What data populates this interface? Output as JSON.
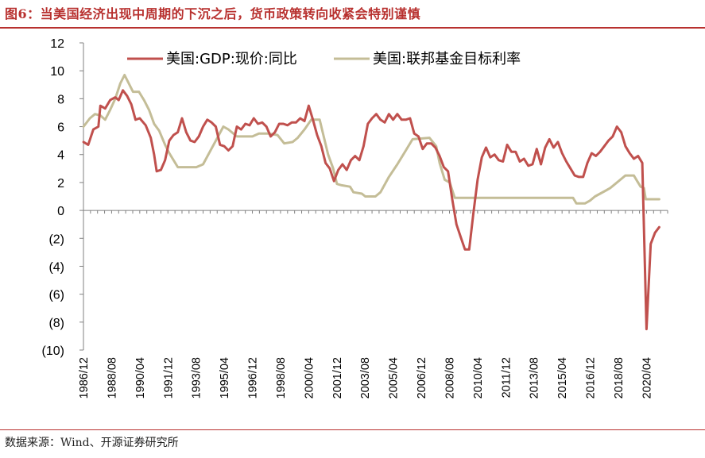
{
  "title": "图6：当美国经济出现中周期的下沉之后，货币政策转向收紧会特别谨慎",
  "source": "数据来源：Wind、开源证券研究所",
  "colors": {
    "gdp": "#c0504d",
    "fed": "#c4bd97",
    "axis": "#808080",
    "title": "#b8312f"
  },
  "chart_data": {
    "type": "line",
    "title": "图6：当美国经济出现中周期的下沉之后，货币政策转向收紧会特别谨慎",
    "xlabel": "",
    "ylabel": "",
    "ylim": [
      -10,
      12
    ],
    "yticks": [
      12,
      10,
      8,
      6,
      4,
      2,
      0,
      -2,
      -4,
      -6,
      -8,
      -10
    ],
    "ytick_labels": [
      "12",
      "10",
      "8",
      "6",
      "4",
      "2",
      "0",
      "(2)",
      "(4)",
      "(6)",
      "(8)",
      "(10)"
    ],
    "xlim": [
      1986.917,
      2021.5
    ],
    "xticks": [
      1986.917,
      1988.583,
      1990.25,
      1991.917,
      1993.583,
      1995.25,
      1996.917,
      1998.583,
      2000.25,
      2001.917,
      2003.583,
      2005.25,
      2006.917,
      2008.583,
      2010.25,
      2011.917,
      2013.583,
      2015.25,
      2016.917,
      2018.583,
      2020.25
    ],
    "xtick_labels": [
      "1986/12",
      "1988/08",
      "1990/04",
      "1991/12",
      "1993/08",
      "1995/04",
      "1996/12",
      "1998/08",
      "2000/04",
      "2001/12",
      "2003/08",
      "2005/04",
      "2006/12",
      "2008/08",
      "2010/04",
      "2011/12",
      "2013/08",
      "2015/04",
      "2016/12",
      "2018/08",
      "2020/04"
    ],
    "legend": [
      "美国:GDP:现价:同比",
      "美国:联邦基金目标利率"
    ],
    "legend_position": "top",
    "series": [
      {
        "name": "美国:GDP:现价:同比",
        "color": "#c0504d",
        "points": [
          [
            1986.92,
            4.9
          ],
          [
            1987.2,
            4.7
          ],
          [
            1987.5,
            5.8
          ],
          [
            1987.8,
            6.0
          ],
          [
            1987.92,
            7.5
          ],
          [
            1988.2,
            7.3
          ],
          [
            1988.5,
            7.9
          ],
          [
            1988.8,
            8.1
          ],
          [
            1989.0,
            7.9
          ],
          [
            1989.25,
            8.6
          ],
          [
            1989.5,
            8.2
          ],
          [
            1989.75,
            7.6
          ],
          [
            1990.0,
            6.5
          ],
          [
            1990.25,
            6.6
          ],
          [
            1990.6,
            6.1
          ],
          [
            1990.9,
            5.2
          ],
          [
            1991.1,
            4.0
          ],
          [
            1991.25,
            2.8
          ],
          [
            1991.5,
            2.9
          ],
          [
            1991.75,
            3.6
          ],
          [
            1992.0,
            5.0
          ],
          [
            1992.25,
            5.4
          ],
          [
            1992.5,
            5.6
          ],
          [
            1992.75,
            6.6
          ],
          [
            1993.0,
            5.6
          ],
          [
            1993.25,
            5.0
          ],
          [
            1993.5,
            4.9
          ],
          [
            1993.75,
            5.3
          ],
          [
            1994.0,
            6.0
          ],
          [
            1994.25,
            6.5
          ],
          [
            1994.5,
            6.3
          ],
          [
            1994.75,
            6.0
          ],
          [
            1995.0,
            4.7
          ],
          [
            1995.25,
            4.6
          ],
          [
            1995.5,
            4.3
          ],
          [
            1995.75,
            4.6
          ],
          [
            1996.0,
            6.0
          ],
          [
            1996.25,
            5.8
          ],
          [
            1996.5,
            6.2
          ],
          [
            1996.75,
            6.1
          ],
          [
            1997.0,
            6.6
          ],
          [
            1997.25,
            6.2
          ],
          [
            1997.5,
            6.3
          ],
          [
            1997.75,
            6.0
          ],
          [
            1998.0,
            5.3
          ],
          [
            1998.25,
            5.6
          ],
          [
            1998.5,
            6.2
          ],
          [
            1998.75,
            6.2
          ],
          [
            1999.0,
            6.1
          ],
          [
            1999.25,
            6.3
          ],
          [
            1999.5,
            6.3
          ],
          [
            1999.75,
            6.6
          ],
          [
            2000.0,
            6.4
          ],
          [
            2000.25,
            7.5
          ],
          [
            2000.5,
            6.5
          ],
          [
            2000.75,
            5.4
          ],
          [
            2001.0,
            4.6
          ],
          [
            2001.25,
            3.4
          ],
          [
            2001.5,
            3.0
          ],
          [
            2001.75,
            2.1
          ],
          [
            2002.0,
            2.9
          ],
          [
            2002.25,
            3.3
          ],
          [
            2002.5,
            2.9
          ],
          [
            2002.75,
            3.6
          ],
          [
            2003.0,
            3.9
          ],
          [
            2003.25,
            3.6
          ],
          [
            2003.5,
            4.6
          ],
          [
            2003.75,
            6.2
          ],
          [
            2004.0,
            6.6
          ],
          [
            2004.25,
            6.9
          ],
          [
            2004.5,
            6.5
          ],
          [
            2004.75,
            6.3
          ],
          [
            2005.0,
            6.9
          ],
          [
            2005.25,
            6.5
          ],
          [
            2005.5,
            6.9
          ],
          [
            2005.75,
            6.5
          ],
          [
            2006.0,
            6.5
          ],
          [
            2006.25,
            6.6
          ],
          [
            2006.5,
            5.5
          ],
          [
            2006.75,
            5.3
          ],
          [
            2007.0,
            4.4
          ],
          [
            2007.25,
            4.8
          ],
          [
            2007.5,
            4.8
          ],
          [
            2007.75,
            4.5
          ],
          [
            2008.0,
            3.9
          ],
          [
            2008.25,
            3.1
          ],
          [
            2008.5,
            2.8
          ],
          [
            2008.75,
            0.8
          ],
          [
            2009.0,
            -1.0
          ],
          [
            2009.25,
            -1.9
          ],
          [
            2009.5,
            -2.8
          ],
          [
            2009.75,
            -2.8
          ],
          [
            2010.0,
            -0.2
          ],
          [
            2010.25,
            2.2
          ],
          [
            2010.5,
            3.8
          ],
          [
            2010.75,
            4.5
          ],
          [
            2011.0,
            3.8
          ],
          [
            2011.25,
            4.0
          ],
          [
            2011.5,
            3.6
          ],
          [
            2011.75,
            3.5
          ],
          [
            2012.0,
            4.7
          ],
          [
            2012.25,
            4.2
          ],
          [
            2012.5,
            4.2
          ],
          [
            2012.75,
            3.5
          ],
          [
            2013.0,
            3.7
          ],
          [
            2013.25,
            3.2
          ],
          [
            2013.5,
            3.3
          ],
          [
            2013.75,
            4.4
          ],
          [
            2014.0,
            3.3
          ],
          [
            2014.25,
            4.5
          ],
          [
            2014.5,
            5.1
          ],
          [
            2014.75,
            4.5
          ],
          [
            2015.0,
            4.9
          ],
          [
            2015.25,
            4.1
          ],
          [
            2015.5,
            3.5
          ],
          [
            2015.75,
            3.0
          ],
          [
            2016.0,
            2.5
          ],
          [
            2016.25,
            2.4
          ],
          [
            2016.5,
            2.4
          ],
          [
            2016.75,
            3.4
          ],
          [
            2017.0,
            4.1
          ],
          [
            2017.25,
            3.9
          ],
          [
            2017.5,
            4.2
          ],
          [
            2017.75,
            4.6
          ],
          [
            2018.0,
            5.0
          ],
          [
            2018.25,
            5.3
          ],
          [
            2018.5,
            6.0
          ],
          [
            2018.75,
            5.6
          ],
          [
            2019.0,
            4.6
          ],
          [
            2019.25,
            4.1
          ],
          [
            2019.5,
            3.7
          ],
          [
            2019.75,
            3.9
          ],
          [
            2020.0,
            3.4
          ],
          [
            2020.25,
            -8.5
          ],
          [
            2020.5,
            -2.4
          ],
          [
            2020.75,
            -1.6
          ],
          [
            2021.0,
            -1.2
          ]
        ]
      },
      {
        "name": "美国:联邦基金目标利率",
        "color": "#c4bd97",
        "points": [
          [
            1986.92,
            6.0
          ],
          [
            1987.3,
            6.6
          ],
          [
            1987.6,
            6.9
          ],
          [
            1987.92,
            6.8
          ],
          [
            1988.2,
            6.5
          ],
          [
            1988.5,
            7.2
          ],
          [
            1988.8,
            8.0
          ],
          [
            1989.1,
            9.1
          ],
          [
            1989.35,
            9.7
          ],
          [
            1989.6,
            9.1
          ],
          [
            1989.85,
            8.5
          ],
          [
            1990.2,
            8.5
          ],
          [
            1990.5,
            7.9
          ],
          [
            1990.8,
            7.2
          ],
          [
            1991.1,
            6.2
          ],
          [
            1991.4,
            5.7
          ],
          [
            1991.75,
            4.7
          ],
          [
            1992.0,
            4.1
          ],
          [
            1992.3,
            3.5
          ],
          [
            1992.5,
            3.1
          ],
          [
            1993.0,
            3.1
          ],
          [
            1993.6,
            3.1
          ],
          [
            1994.0,
            3.3
          ],
          [
            1994.4,
            4.2
          ],
          [
            1994.8,
            5.1
          ],
          [
            1995.2,
            6.0
          ],
          [
            1995.5,
            5.8
          ],
          [
            1996.0,
            5.3
          ],
          [
            1996.5,
            5.3
          ],
          [
            1996.92,
            5.3
          ],
          [
            1997.3,
            5.5
          ],
          [
            1997.9,
            5.5
          ],
          [
            1998.4,
            5.4
          ],
          [
            1998.8,
            4.8
          ],
          [
            1999.3,
            4.9
          ],
          [
            1999.6,
            5.2
          ],
          [
            2000.0,
            5.8
          ],
          [
            2000.4,
            6.5
          ],
          [
            2000.9,
            6.5
          ],
          [
            2001.1,
            5.5
          ],
          [
            2001.4,
            4.0
          ],
          [
            2001.7,
            3.0
          ],
          [
            2001.92,
            1.9
          ],
          [
            2002.2,
            1.8
          ],
          [
            2002.7,
            1.7
          ],
          [
            2002.9,
            1.3
          ],
          [
            2003.4,
            1.2
          ],
          [
            2003.6,
            1.0
          ],
          [
            2004.2,
            1.0
          ],
          [
            2004.5,
            1.3
          ],
          [
            2005.0,
            2.4
          ],
          [
            2005.5,
            3.3
          ],
          [
            2006.0,
            4.3
          ],
          [
            2006.4,
            5.1
          ],
          [
            2007.4,
            5.2
          ],
          [
            2007.8,
            4.6
          ],
          [
            2008.0,
            3.4
          ],
          [
            2008.3,
            2.2
          ],
          [
            2008.6,
            2.0
          ],
          [
            2008.9,
            0.9
          ],
          [
            2009.2,
            0.9
          ],
          [
            2010.0,
            0.9
          ],
          [
            2011.0,
            0.9
          ],
          [
            2012.0,
            0.9
          ],
          [
            2013.0,
            0.9
          ],
          [
            2014.0,
            0.9
          ],
          [
            2015.0,
            0.9
          ],
          [
            2015.9,
            0.9
          ],
          [
            2016.1,
            0.5
          ],
          [
            2016.6,
            0.5
          ],
          [
            2016.9,
            0.7
          ],
          [
            2017.2,
            1.0
          ],
          [
            2017.5,
            1.2
          ],
          [
            2017.8,
            1.4
          ],
          [
            2018.1,
            1.6
          ],
          [
            2018.4,
            1.9
          ],
          [
            2018.8,
            2.3
          ],
          [
            2019.0,
            2.5
          ],
          [
            2019.5,
            2.5
          ],
          [
            2019.7,
            2.1
          ],
          [
            2019.9,
            1.7
          ],
          [
            2020.1,
            1.6
          ],
          [
            2020.2,
            0.8
          ],
          [
            2021.0,
            0.8
          ]
        ]
      }
    ]
  }
}
